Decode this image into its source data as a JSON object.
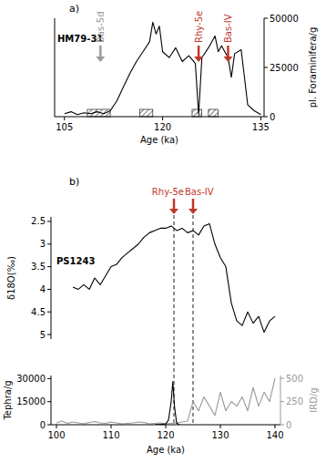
{
  "chart_data": [
    {
      "type": "line",
      "title": "a)",
      "xlabel": "Age (ka)",
      "ylabel": "pl. Foraminifera/g",
      "xlim": [
        103.5,
        135.5
      ],
      "xticks": [
        105,
        120,
        135
      ],
      "ylim": [
        0,
        50000
      ],
      "yticks": [
        0,
        25000,
        50000
      ],
      "series": [
        {
          "name": "HM79-31",
          "color": "#000000",
          "x": [
            105,
            106,
            107,
            108,
            109,
            110,
            111,
            112,
            113,
            114,
            115,
            116,
            117,
            118,
            118.5,
            119,
            119.5,
            120,
            121,
            122,
            123,
            124,
            125,
            125.5,
            126,
            127,
            128,
            128.5,
            129,
            130,
            130.5,
            131,
            132,
            132.5,
            133,
            134,
            135
          ],
          "values": [
            1500,
            2500,
            1000,
            2000,
            1500,
            2500,
            1500,
            3000,
            8000,
            15000,
            22000,
            28000,
            33000,
            38000,
            48000,
            42000,
            46000,
            33000,
            30000,
            35000,
            28000,
            31000,
            27000,
            1000,
            30000,
            35000,
            41000,
            33000,
            36000,
            30000,
            20000,
            32000,
            34000,
            20000,
            6000,
            3000,
            1000
          ]
        }
      ],
      "annotations": [
        {
          "text": "Bas-5d",
          "x": 110.5,
          "color": "#9a9a9a"
        },
        {
          "text": "Rhy-5e",
          "x": 125.5,
          "color": "#c0392b"
        },
        {
          "text": "Bas-IV",
          "x": 130,
          "color": "#c0392b"
        }
      ],
      "intervals": [
        [
          108.5,
          112
        ],
        [
          116.5,
          118.5
        ],
        [
          124.5,
          126
        ],
        [
          127,
          128.5
        ]
      ]
    },
    {
      "type": "line",
      "title": "b)",
      "ylabel": "δ18O(‰)",
      "tick_labels": "y",
      "xlim": [
        99,
        141
      ],
      "ylim": [
        5.1,
        2.4
      ],
      "yticks": [
        2.5,
        3,
        3.5,
        4,
        4.5,
        5
      ],
      "series": [
        {
          "name": "PS1243",
          "color": "#000000",
          "x": [
            103,
            104,
            105,
            106,
            107,
            108,
            109,
            110,
            111,
            112,
            113,
            114,
            115,
            116,
            117,
            118,
            119,
            120,
            121,
            122,
            123,
            124,
            125,
            126,
            127,
            128,
            129,
            130,
            131,
            132,
            133,
            134,
            135,
            136,
            137,
            138,
            139,
            140
          ],
          "values": [
            3.95,
            4.0,
            3.9,
            4.0,
            3.75,
            3.9,
            3.7,
            3.5,
            3.45,
            3.3,
            3.2,
            3.1,
            3.0,
            2.85,
            2.75,
            2.7,
            2.65,
            2.65,
            2.6,
            2.7,
            2.65,
            2.75,
            2.7,
            2.8,
            2.6,
            2.55,
            3.0,
            3.3,
            3.5,
            4.3,
            4.7,
            4.8,
            4.5,
            4.75,
            4.6,
            4.95,
            4.7,
            4.6
          ]
        }
      ],
      "annotations": [
        {
          "text": "Rhy-5e",
          "x": 121.5,
          "color": "#c0392b"
        },
        {
          "text": "Bas-IV",
          "x": 125,
          "color": "#c0392b"
        }
      ]
    },
    {
      "type": "line",
      "xlabel": "Age (ka)",
      "ylabel": "Tephra/g",
      "y2label": "IRD/g",
      "xlim": [
        99,
        141
      ],
      "xticks": [
        100,
        110,
        120,
        130,
        140
      ],
      "ylim": [
        0,
        32000
      ],
      "yticks": [
        0,
        15000,
        30000
      ],
      "y2lim": [
        0,
        530
      ],
      "y2ticks": [
        0,
        250,
        500
      ],
      "series": [
        {
          "color": "#000000",
          "x": [
            118,
            119,
            120,
            120.5,
            121,
            121.3,
            121.6,
            122,
            122.5
          ],
          "values": [
            0,
            200,
            500,
            3000,
            15000,
            28000,
            12000,
            1000,
            0
          ]
        },
        {
          "color": "#999999",
          "axis": "y2",
          "x": [
            100,
            101,
            102,
            103,
            104,
            105,
            106,
            107,
            108,
            109,
            110,
            111,
            112,
            113,
            114,
            115,
            116,
            117,
            118,
            119,
            120,
            121,
            122,
            123,
            124,
            125,
            126,
            127,
            128,
            129,
            130,
            131,
            132,
            133,
            134,
            135,
            136,
            137,
            138,
            139,
            140
          ],
          "values": [
            20,
            40,
            15,
            30,
            20,
            10,
            25,
            35,
            20,
            15,
            30,
            20,
            10,
            15,
            20,
            30,
            25,
            10,
            15,
            20,
            10,
            15,
            20,
            30,
            40,
            250,
            150,
            300,
            200,
            100,
            350,
            150,
            250,
            200,
            300,
            150,
            400,
            200,
            350,
            250,
            500
          ]
        }
      ]
    }
  ]
}
